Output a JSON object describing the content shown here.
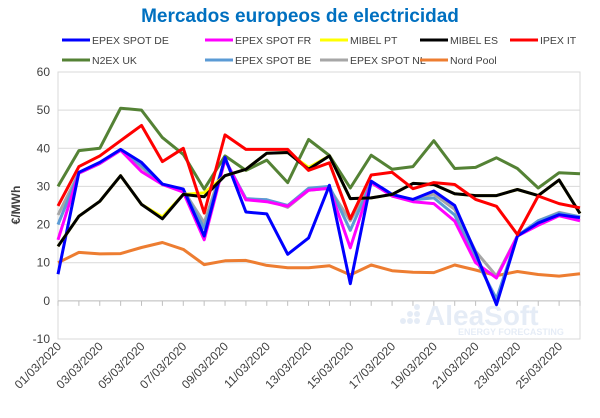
{
  "chart_data": {
    "type": "line",
    "title": "Mercados europeos de electricidad",
    "xlabel": "",
    "ylabel": "€/MWh",
    "ylim": [
      -10,
      60
    ],
    "yticks": [
      -10,
      0,
      10,
      20,
      30,
      40,
      50,
      60
    ],
    "grid": true,
    "legend_position": "top",
    "x": [
      "01/03/2020",
      "02/03/2020",
      "03/03/2020",
      "04/03/2020",
      "05/03/2020",
      "06/03/2020",
      "07/03/2020",
      "08/03/2020",
      "09/03/2020",
      "10/03/2020",
      "11/03/2020",
      "12/03/2020",
      "13/03/2020",
      "14/03/2020",
      "15/03/2020",
      "16/03/2020",
      "17/03/2020",
      "18/03/2020",
      "19/03/2020",
      "20/03/2020",
      "21/03/2020",
      "22/03/2020",
      "23/03/2020",
      "24/03/2020",
      "25/03/2020",
      "26/03/2020"
    ],
    "xtick_labels": [
      "01/03/2020",
      "03/03/2020",
      "05/03/2020",
      "07/03/2020",
      "09/03/2020",
      "11/03/2020",
      "13/03/2020",
      "15/03/2020",
      "17/03/2020",
      "19/03/2020",
      "21/03/2020",
      "23/03/2020",
      "25/03/2020"
    ],
    "series": [
      {
        "name": "N2EX UK",
        "color": "#548235",
        "values": [
          30,
          39.4,
          40,
          50.5,
          50,
          42.8,
          38.4,
          29.3,
          38,
          34.2,
          36.9,
          31,
          42.3,
          38.1,
          29.6,
          38.2,
          34.5,
          35.2,
          42,
          34.7,
          35,
          37.5,
          34.7,
          29.6,
          33.6,
          33.3
        ]
      },
      {
        "name": "Nord Pool",
        "color": "#ed7d31",
        "values": [
          10,
          12.7,
          12.3,
          12.4,
          14,
          15.3,
          13.5,
          9.5,
          10.5,
          10.6,
          9.3,
          8.7,
          8.7,
          9.2,
          6.8,
          9.4,
          7.9,
          7.5,
          7.4,
          9.4,
          8.1,
          6.6,
          7.7,
          6.9,
          6.5,
          7.1
        ]
      },
      {
        "name": "EPEX SPOT NL",
        "color": "#a6a6a6",
        "values": [
          22.5,
          33.5,
          36,
          39.5,
          35,
          30.5,
          29,
          20.5,
          37,
          26.5,
          26.5,
          24.5,
          29,
          29.5,
          21,
          31,
          27.5,
          26.5,
          28,
          24,
          13,
          6.5,
          17,
          21,
          23.2,
          22
        ]
      },
      {
        "name": "EPEX SPOT BE",
        "color": "#5b9bd5",
        "values": [
          20,
          33.5,
          36,
          39.5,
          35.5,
          30.5,
          29,
          19,
          37,
          26.8,
          26.5,
          25,
          29.5,
          30,
          18.5,
          31,
          27.5,
          26.5,
          27,
          22.5,
          11,
          0.5,
          17,
          21,
          23,
          22
        ]
      },
      {
        "name": "EPEX SPOT FR",
        "color": "#ff00ff",
        "values": [
          16,
          33.5,
          36,
          39.5,
          33.9,
          30.5,
          28.5,
          16,
          37,
          26.5,
          26,
          24.8,
          29,
          29.5,
          13.9,
          31,
          27.5,
          26,
          25.5,
          20.9,
          10,
          6,
          17,
          19.8,
          22.3,
          21
        ]
      },
      {
        "name": "EPEX SPOT DE",
        "color": "#0000ff",
        "values": [
          7,
          33.7,
          36.3,
          39.7,
          36.3,
          30.6,
          29.3,
          17,
          37.6,
          23.3,
          22.8,
          12.2,
          16.5,
          30.3,
          4.5,
          31.4,
          27.9,
          26.6,
          28.8,
          25,
          12.6,
          -1,
          17,
          20.4,
          22.6,
          21.8
        ]
      },
      {
        "name": "MIBEL PT",
        "color": "#ffff00",
        "values": [
          14.3,
          22.2,
          26.1,
          32.8,
          25.3,
          22,
          27.9,
          28.3,
          32.8,
          34.5,
          38.7,
          38.9,
          35,
          38,
          26.8,
          27,
          27.9,
          30.8,
          30.5,
          28.1,
          27.6,
          27.6,
          29.2,
          27.6,
          31.7,
          22.9
        ]
      },
      {
        "name": "MIBEL ES",
        "color": "#000000",
        "values": [
          14.3,
          22.2,
          26.1,
          32.8,
          25.3,
          21.5,
          27.9,
          27.3,
          32.8,
          34.5,
          38.7,
          38.9,
          34.5,
          38,
          26.8,
          27,
          27.9,
          30.8,
          30.5,
          28.1,
          27.6,
          27.6,
          29.2,
          27.6,
          31.7,
          22.9
        ]
      },
      {
        "name": "IPEX IT",
        "color": "#ff0000",
        "values": [
          24.9,
          35.2,
          38,
          42,
          46,
          36.5,
          40,
          23,
          43.5,
          39.7,
          39.7,
          39.7,
          34.2,
          36.2,
          21.5,
          33,
          33.7,
          29.4,
          31,
          30.5,
          26.6,
          24.8,
          17.4,
          27.5,
          25.5,
          24.4
        ]
      }
    ],
    "legend": [
      "EPEX SPOT DE",
      "EPEX SPOT FR",
      "MIBEL PT",
      "MIBEL ES",
      "IPEX IT",
      "N2EX UK",
      "EPEX SPOT BE",
      "EPEX SPOT NL",
      "Nord Pool"
    ]
  },
  "watermark": {
    "brand": "AleaSoft",
    "tagline": "ENERGY FORECASTING"
  }
}
